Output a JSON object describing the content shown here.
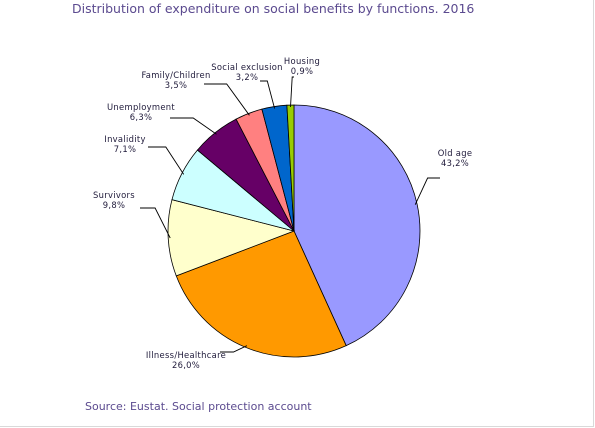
{
  "title": "Distribution of expenditure on social benefits by functions. 2016",
  "source": "Source: Eustat. Social protection account",
  "chart_data": {
    "type": "pie",
    "title": "Distribution of expenditure on social benefits by functions. 2016",
    "slices": [
      {
        "label": "Old age",
        "value": 43.2,
        "value_label": "43,2%",
        "color": "#9999ff"
      },
      {
        "label": "Illness/Healthcare",
        "value": 26.0,
        "value_label": "26,0%",
        "color": "#ff9900"
      },
      {
        "label": "Survivors",
        "value": 9.8,
        "value_label": "9,8%",
        "color": "#ffffcc"
      },
      {
        "label": "Invalidity",
        "value": 7.1,
        "value_label": "7,1%",
        "color": "#ccffff"
      },
      {
        "label": "Unemployment",
        "value": 6.3,
        "value_label": "6,3%",
        "color": "#660066"
      },
      {
        "label": "Family/Children",
        "value": 3.5,
        "value_label": "3,5%",
        "color": "#ff8080"
      },
      {
        "label": "Social exclusion",
        "value": 3.2,
        "value_label": "3,2%",
        "color": "#0066cc"
      },
      {
        "label": "Housing",
        "value": 0.9,
        "value_label": "0,9%",
        "color": "#99cc00"
      }
    ],
    "start": "12 o'clock",
    "direction": "clockwise"
  }
}
